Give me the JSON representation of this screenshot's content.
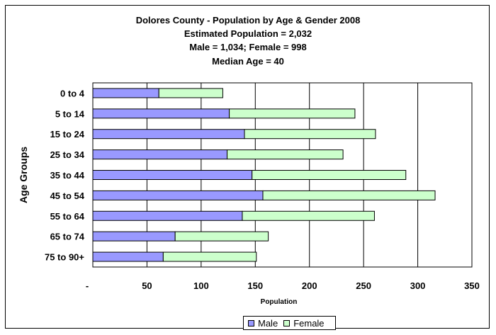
{
  "chart_data": {
    "type": "bar",
    "orientation": "horizontal",
    "stacked": true,
    "title_lines": [
      "Dolores County - Population by Age & Gender 2008",
      "Estimated Population = 2,032",
      "Male = 1,034; Female = 998",
      "Median Age = 40"
    ],
    "xlabel": "Population",
    "ylabel": "Age Groups",
    "categories": [
      "0 to 4",
      "5 to 14",
      "15 to 24",
      "25 to 34",
      "35 to 44",
      "45 to 54",
      "55 to 64",
      "65 to 74",
      "75 to 90+"
    ],
    "series": [
      {
        "name": "Male",
        "color": "#9999ff",
        "values": [
          61,
          126,
          140,
          124,
          147,
          157,
          138,
          76,
          65
        ]
      },
      {
        "name": "Female",
        "color": "#ccffcc",
        "values": [
          59,
          116,
          121,
          107,
          142,
          159,
          122,
          86,
          86
        ]
      }
    ],
    "xlim": [
      0,
      350
    ],
    "x_ticks": [
      {
        "value": 0,
        "label": "-"
      },
      {
        "value": 50,
        "label": "50"
      },
      {
        "value": 100,
        "label": "100"
      },
      {
        "value": 150,
        "label": "150"
      },
      {
        "value": 200,
        "label": "200"
      },
      {
        "value": 250,
        "label": "250"
      },
      {
        "value": 300,
        "label": "300"
      },
      {
        "value": 350,
        "label": "350"
      }
    ],
    "grid": "vertical",
    "legend_position": "bottom"
  }
}
